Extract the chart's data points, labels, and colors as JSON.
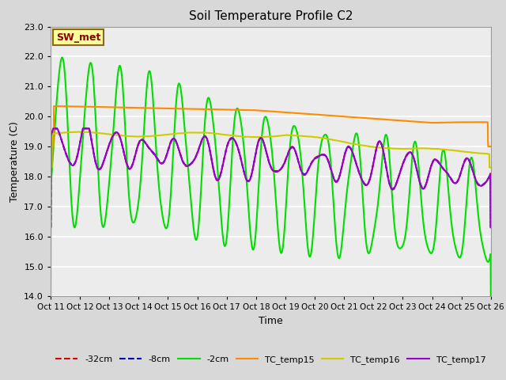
{
  "title": "Soil Temperature Profile C2",
  "xlabel": "Time",
  "ylabel": "Temperature (C)",
  "ylim": [
    14.0,
    23.0
  ],
  "yticks": [
    14.0,
    15.0,
    16.0,
    17.0,
    18.0,
    19.0,
    20.0,
    21.0,
    22.0,
    23.0
  ],
  "xtick_labels": [
    "Oct 11",
    "Oct 12",
    "Oct 13",
    "Oct 14",
    "Oct 15",
    "Oct 16",
    "Oct 17",
    "Oct 18",
    "Oct 19",
    "Oct 20",
    "Oct 21",
    "Oct 22",
    "Oct 23",
    "Oct 24",
    "Oct 25",
    "Oct 26"
  ],
  "fig_bg_color": "#d8d8d8",
  "plot_bg_color": "#ececec",
  "grid_color": "#ffffff",
  "annotation_text": "SW_met",
  "annotation_fg": "#8b0000",
  "annotation_bg": "#ffff99",
  "annotation_border": "#8b6914",
  "legend_entries": [
    "-32cm",
    "-8cm",
    "-2cm",
    "TC_temp15",
    "TC_temp16",
    "TC_temp17"
  ],
  "line_colors": [
    "#dd0000",
    "#0000bb",
    "#00dd00",
    "#ff8c00",
    "#cccc00",
    "#9900cc"
  ],
  "line_styles": [
    "--",
    "--",
    "-",
    "-",
    "-",
    "-"
  ],
  "line_widths": [
    1.3,
    1.3,
    1.5,
    1.5,
    1.5,
    1.5
  ]
}
